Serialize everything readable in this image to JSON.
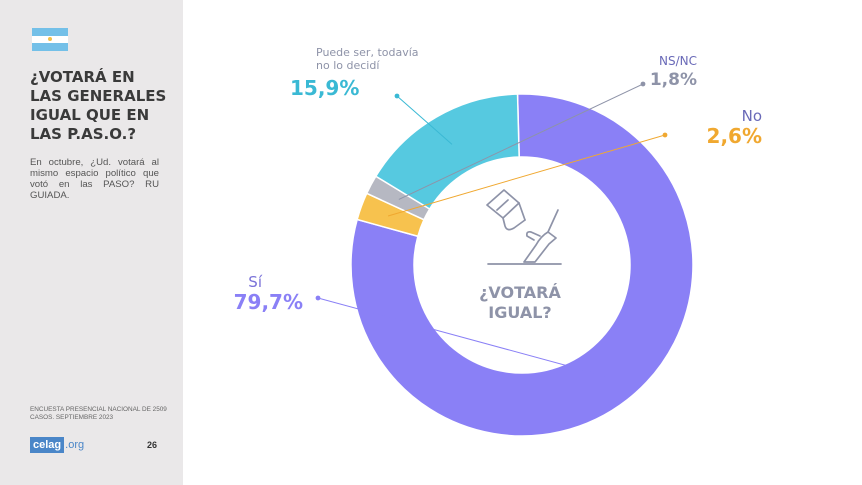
{
  "sidebar": {
    "title": "¿VOTARÁ EN\nLAS GENERALES\nIGUAL QUE EN\nLAS P.AS.O.?",
    "description": "En octubre, ¿Ud. votará al mismo espacio político que votó en las PASO? RU GUIADA.",
    "source": "ENCUESTA PRESENCIAL NACIONAL DE 2509 CASOS. SEPTIEMBRE 2023",
    "logo_main": "celag",
    "logo_suffix": ".org",
    "page_number": "26",
    "flag_icon": "argentina-flag-icon"
  },
  "chart_data": {
    "type": "pie",
    "variant": "donut",
    "center_label": "¿VOTARÁ IGUAL?",
    "center_icon": "voting-ballot-box-icon",
    "categories": [
      "Sí",
      "No",
      "NS/NC",
      "Puede ser, todavía no lo decidí"
    ],
    "values": [
      79.7,
      2.6,
      1.8,
      15.9
    ],
    "value_labels": [
      "79,7%",
      "2,6%",
      "1,8%",
      "15,9%"
    ],
    "colors": [
      "#8a80f6",
      "#f7c24e",
      "#b6b8c2",
      "#56c9e0"
    ],
    "label_colors": [
      "#8a80f6",
      "#f0a830",
      "#8e93a8",
      "#3ab9d4"
    ],
    "category_label_colors": [
      "#7a72d8",
      "#6a6ab8",
      "#6a6ab8",
      "#8e93a8"
    ]
  }
}
